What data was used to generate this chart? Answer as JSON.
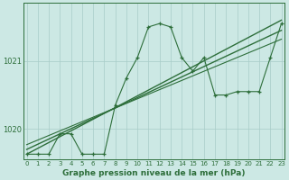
{
  "xlabel": "Graphe pression niveau de la mer (hPa)",
  "bg_color": "#cce8e4",
  "plot_bg_color": "#cce8e4",
  "grid_color": "#a8ccc8",
  "line_color": "#2d6e3a",
  "text_color": "#2d6e3a",
  "x_ticks": [
    0,
    1,
    2,
    3,
    4,
    5,
    6,
    7,
    8,
    9,
    10,
    11,
    12,
    13,
    14,
    15,
    16,
    17,
    18,
    19,
    20,
    21,
    22,
    23
  ],
  "y_ticks": [
    1020,
    1021
  ],
  "ylim": [
    1019.55,
    1021.85
  ],
  "xlim": [
    -0.3,
    23.3
  ],
  "jagged_x": [
    0,
    1,
    2,
    3,
    4,
    5,
    6,
    7,
    8,
    9,
    10,
    11,
    12,
    13,
    14,
    15,
    16,
    17,
    18,
    19,
    20,
    21,
    22,
    23
  ],
  "jagged_y": [
    1019.63,
    1019.63,
    1019.63,
    1019.93,
    1019.93,
    1019.63,
    1019.63,
    1019.63,
    1020.35,
    1020.75,
    1021.05,
    1021.5,
    1021.55,
    1021.5,
    1021.05,
    1020.85,
    1021.05,
    1020.5,
    1020.5,
    1020.55,
    1020.55,
    1020.55,
    1021.05,
    1021.55
  ],
  "trend1_x": [
    0,
    23
  ],
  "trend1_y": [
    1019.63,
    1021.6
  ],
  "trend2_x": [
    0,
    23
  ],
  "trend2_y": [
    1019.7,
    1021.45
  ],
  "trend3_x": [
    0,
    23
  ],
  "trend3_y": [
    1019.77,
    1021.32
  ]
}
